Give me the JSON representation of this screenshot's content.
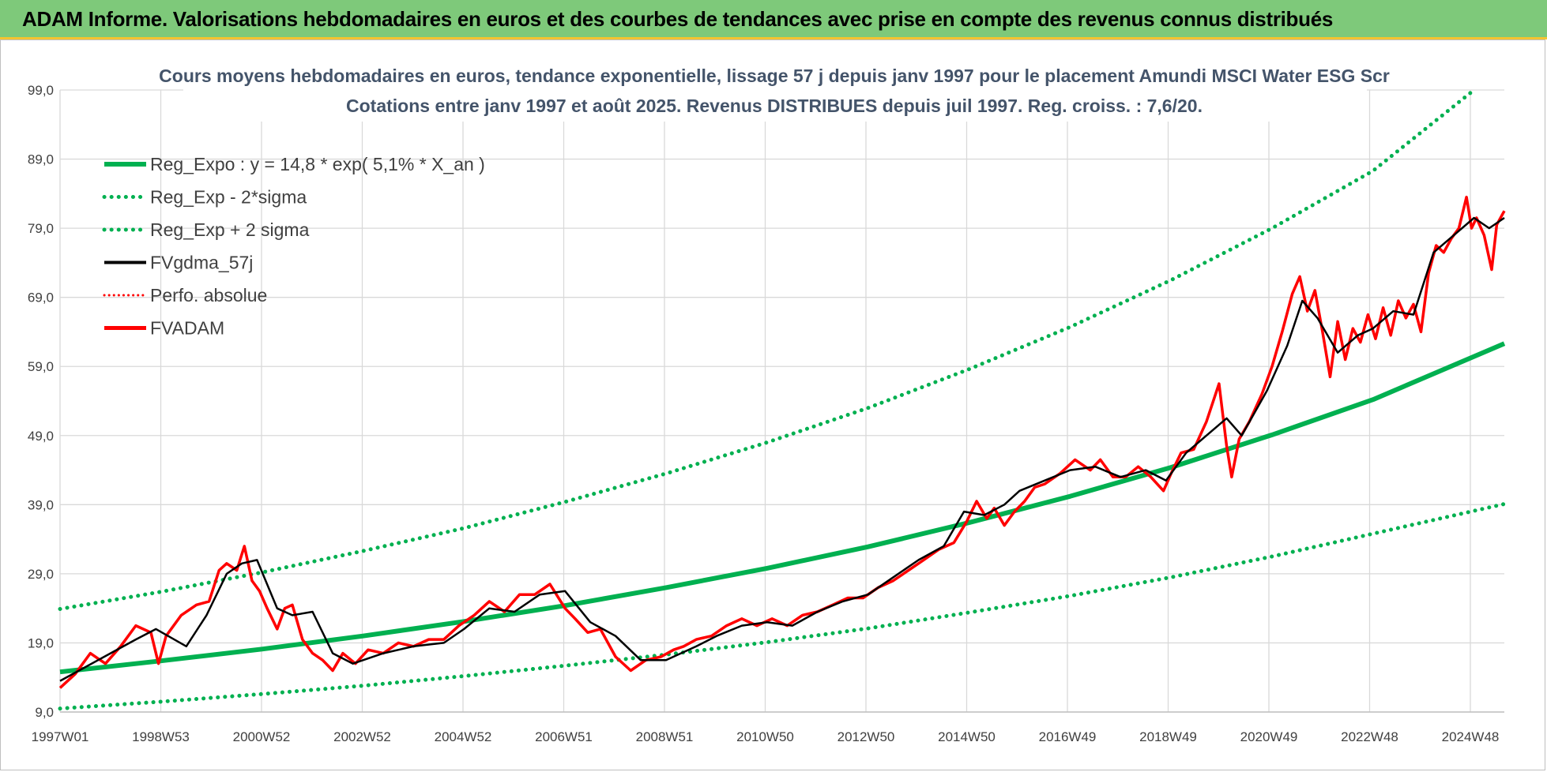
{
  "header": {
    "title": "ADAM Informe. Valorisations hebdomadaires en euros et des courbes de tendances avec prise en compte des revenus connus distribués"
  },
  "chart_data": {
    "type": "line",
    "title_lines": [
      "Cours moyens hebdomadaires en euros, tendance exponentielle, lissage 57 j depuis janv 1997  pour le placement Amundi MSCI Water ESG Scr",
      "Cotations entre janv 1997 et août 2025.  Revenus DISTRIBUES depuis juil 1997.  Reg. croiss. : 7,6/20."
    ],
    "xlabel": "",
    "ylabel": "",
    "x_tick_labels": [
      "1997W01",
      "1998W53",
      "2000W52",
      "2002W52",
      "2004W52",
      "2006W51",
      "2008W51",
      "2010W50",
      "2012W50",
      "2014W50",
      "2016W49",
      "2018W49",
      "2020W49",
      "2022W48",
      "2024W48"
    ],
    "y_tick_labels": [
      "9,0",
      "19,0",
      "29,0",
      "39,0",
      "49,0",
      "59,0",
      "69,0",
      "79,0",
      "89,0",
      "99,0"
    ],
    "xlim": [
      1997.0,
      2025.6
    ],
    "ylim": [
      9,
      99
    ],
    "grid": true,
    "legend_position": "top-left",
    "colors": {
      "regression": "#00b050",
      "smoothed": "#000000",
      "fund": "#ff0000",
      "header_bg": "#7ec97a",
      "title_text": "#44546a"
    },
    "legend": [
      {
        "label": "Reg_Expo : y = 14,8 * exp( 5,1% *  X_an )",
        "style": "solid-green"
      },
      {
        "label": "Reg_Exp - 2*sigma",
        "style": "dotted-green"
      },
      {
        "label": "Reg_Exp + 2 sigma",
        "style": "dotted-green"
      },
      {
        "label": "FVgdma_57j",
        "style": "solid-black"
      },
      {
        "label": "Perfo. absolue",
        "style": "dotted-red"
      },
      {
        "label": "FVADAM",
        "style": "solid-red"
      }
    ],
    "series": [
      {
        "name": "Reg_Expo : y = 14,8 * exp( 5,1% *  X_an )",
        "x": [
          1997.0,
          1999.0,
          2001.0,
          2003.0,
          2005.0,
          2007.0,
          2009.0,
          2011.0,
          2013.0,
          2015.0,
          2017.0,
          2019.0,
          2021.0,
          2023.0,
          2025.6
        ],
        "y": [
          14.8,
          16.4,
          18.1,
          20.0,
          22.1,
          24.4,
          27.0,
          29.8,
          32.9,
          36.4,
          40.2,
          44.4,
          49.1,
          54.2,
          62.3
        ]
      },
      {
        "name": "Reg_Exp - 2*sigma",
        "x": [
          1997.0,
          1999.0,
          2001.0,
          2003.0,
          2005.0,
          2007.0,
          2009.0,
          2011.0,
          2013.0,
          2015.0,
          2017.0,
          2019.0,
          2021.0,
          2023.0,
          2025.6
        ],
        "y": [
          9.5,
          10.5,
          11.6,
          12.8,
          14.2,
          15.7,
          17.3,
          19.1,
          21.1,
          23.4,
          25.8,
          28.5,
          31.5,
          34.8,
          39.1
        ]
      },
      {
        "name": "Reg_Exp + 2 sigma",
        "x": [
          1997.0,
          1999.0,
          2001.0,
          2003.0,
          2005.0,
          2007.0,
          2009.0,
          2011.0,
          2013.0,
          2015.0,
          2017.0,
          2019.0,
          2021.0,
          2023.0,
          2025.0
        ],
        "y": [
          23.9,
          26.4,
          29.2,
          32.3,
          35.6,
          39.4,
          43.5,
          48.0,
          53.0,
          58.6,
          64.7,
          71.5,
          79.0,
          87.3,
          99.0
        ]
      },
      {
        "name": "FVgdma_57j",
        "x": [
          1997.0,
          1997.5,
          1998.0,
          1998.5,
          1998.9,
          1999.5,
          1999.9,
          2000.3,
          2000.6,
          2000.9,
          2001.3,
          2001.6,
          2002.0,
          2002.4,
          2002.8,
          2003.4,
          2004.0,
          2004.6,
          2005.0,
          2005.5,
          2006.0,
          2006.5,
          2007.0,
          2007.5,
          2008.0,
          2008.5,
          2009.0,
          2009.6,
          2010.0,
          2010.5,
          2011.0,
          2011.5,
          2012.0,
          2012.5,
          2013.0,
          2013.5,
          2014.0,
          2014.5,
          2014.9,
          2015.3,
          2015.7,
          2016.0,
          2016.5,
          2017.0,
          2017.5,
          2018.0,
          2018.5,
          2018.9,
          2019.3,
          2019.7,
          2020.1,
          2020.4,
          2020.9,
          2021.3,
          2021.6,
          2021.9,
          2022.3,
          2022.7,
          2023.0,
          2023.4,
          2023.8,
          2024.2,
          2024.6,
          2025.0,
          2025.3,
          2025.6
        ],
        "y": [
          13.5,
          15.5,
          17.5,
          19.5,
          21.0,
          18.5,
          23.0,
          29.0,
          30.5,
          31.0,
          24.0,
          23.0,
          23.5,
          17.5,
          16.0,
          17.5,
          18.5,
          19.0,
          21.0,
          24.0,
          23.5,
          26.0,
          26.5,
          22.0,
          20.0,
          16.5,
          16.5,
          18.5,
          20.0,
          21.5,
          22.0,
          21.5,
          23.5,
          25.0,
          26.0,
          28.5,
          31.0,
          33.0,
          38.0,
          37.5,
          39.0,
          41.0,
          42.5,
          44.0,
          44.5,
          43.0,
          44.0,
          42.5,
          46.5,
          49.0,
          51.5,
          49.0,
          55.5,
          62.0,
          68.5,
          66.0,
          61.0,
          63.5,
          64.5,
          67.0,
          66.5,
          75.5,
          78.0,
          80.5,
          79.0,
          80.5
        ]
      },
      {
        "name": "FVADAM",
        "x": [
          1997.0,
          1997.3,
          1997.6,
          1997.9,
          1998.2,
          1998.5,
          1998.8,
          1998.95,
          1999.1,
          1999.4,
          1999.7,
          1999.95,
          2000.15,
          2000.3,
          2000.5,
          2000.65,
          2000.8,
          2000.95,
          2001.1,
          2001.3,
          2001.45,
          2001.6,
          2001.8,
          2002.0,
          2002.2,
          2002.4,
          2002.6,
          2002.85,
          2003.1,
          2003.4,
          2003.7,
          2004.0,
          2004.3,
          2004.6,
          2004.9,
          2005.2,
          2005.5,
          2005.8,
          2006.1,
          2006.4,
          2006.7,
          2007.0,
          2007.2,
          2007.45,
          2007.7,
          2008.0,
          2008.3,
          2008.6,
          2008.9,
          2009.15,
          2009.35,
          2009.6,
          2009.9,
          2010.2,
          2010.5,
          2010.8,
          2011.1,
          2011.4,
          2011.7,
          2012.0,
          2012.3,
          2012.6,
          2012.9,
          2013.2,
          2013.5,
          2013.8,
          2014.1,
          2014.4,
          2014.7,
          2014.95,
          2015.15,
          2015.35,
          2015.5,
          2015.7,
          2015.9,
          2016.1,
          2016.3,
          2016.5,
          2016.8,
          2017.1,
          2017.4,
          2017.6,
          2017.85,
          2018.1,
          2018.35,
          2018.6,
          2018.85,
          2019.0,
          2019.2,
          2019.45,
          2019.7,
          2019.95,
          2020.1,
          2020.2,
          2020.35,
          2020.55,
          2020.8,
          2021.0,
          2021.2,
          2021.4,
          2021.55,
          2021.7,
          2021.85,
          2022.0,
          2022.15,
          2022.3,
          2022.45,
          2022.6,
          2022.75,
          2022.9,
          2023.05,
          2023.2,
          2023.35,
          2023.5,
          2023.65,
          2023.8,
          2023.95,
          2024.1,
          2024.25,
          2024.4,
          2024.55,
          2024.7,
          2024.85,
          2024.95,
          2025.05,
          2025.2,
          2025.35,
          2025.45,
          2025.6
        ],
        "y": [
          12.5,
          14.5,
          17.5,
          16.0,
          18.5,
          21.5,
          20.5,
          16.0,
          20.0,
          23.0,
          24.5,
          25.0,
          29.5,
          30.5,
          29.5,
          33.0,
          28.0,
          26.5,
          24.0,
          21.0,
          24.0,
          24.5,
          19.5,
          17.5,
          16.5,
          15.0,
          17.5,
          16.0,
          18.0,
          17.5,
          19.0,
          18.5,
          19.5,
          19.5,
          21.5,
          23.0,
          25.0,
          23.5,
          26.0,
          26.0,
          27.5,
          24.0,
          22.5,
          20.5,
          21.0,
          17.0,
          15.0,
          16.5,
          17.0,
          18.0,
          18.5,
          19.5,
          20.0,
          21.5,
          22.5,
          21.5,
          22.5,
          21.5,
          23.0,
          23.5,
          24.5,
          25.5,
          25.5,
          27.0,
          28.0,
          29.5,
          31.0,
          32.5,
          33.5,
          36.5,
          39.5,
          37.0,
          38.5,
          36.0,
          38.0,
          39.5,
          41.5,
          42.0,
          43.5,
          45.5,
          44.0,
          45.5,
          43.0,
          43.0,
          44.5,
          43.0,
          41.0,
          43.5,
          46.5,
          47.0,
          51.0,
          56.5,
          47.5,
          43.0,
          48.5,
          51.0,
          55.0,
          59.0,
          64.0,
          69.5,
          72.0,
          67.0,
          70.0,
          64.0,
          57.5,
          65.5,
          60.0,
          64.5,
          62.5,
          66.5,
          63.0,
          67.5,
          63.5,
          68.5,
          66.0,
          68.0,
          64.0,
          72.5,
          76.5,
          75.5,
          77.5,
          79.0,
          83.5,
          79.0,
          80.5,
          78.0,
          73.0,
          79.5,
          81.5
        ]
      }
    ]
  }
}
